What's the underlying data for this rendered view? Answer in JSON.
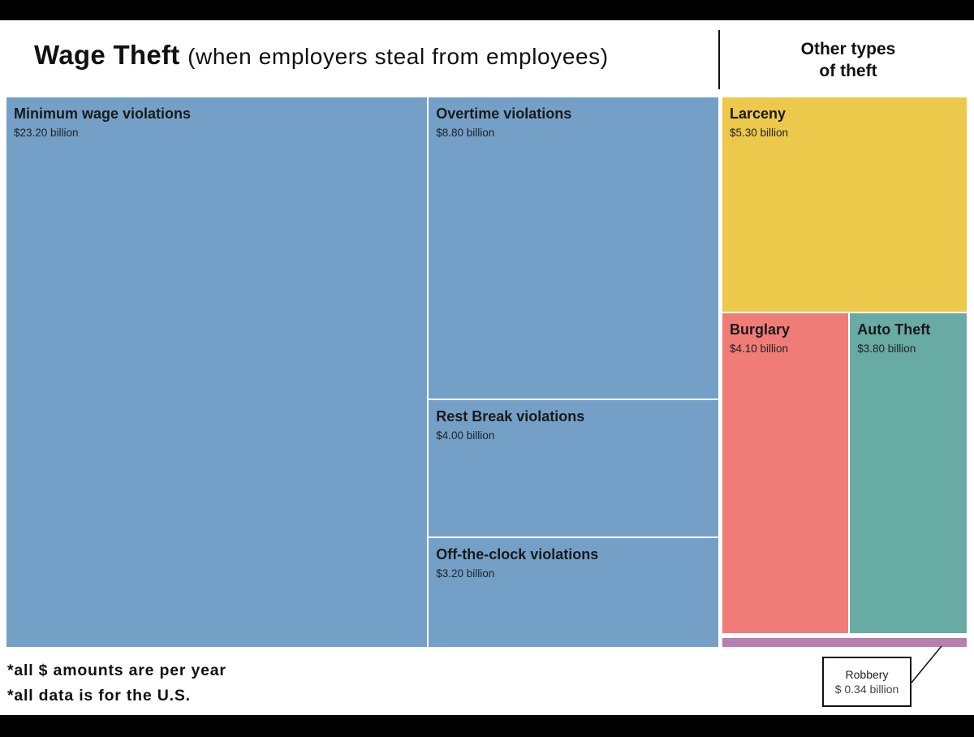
{
  "chart_data": {
    "type": "treemap",
    "title": "Wage Theft",
    "subtitle": "(when employers steal from employees)",
    "other_heading": [
      "Other types",
      "of theft"
    ],
    "colors": {
      "wage": "#74a0c7",
      "larceny": "#ecc94b",
      "burglary": "#f07c78",
      "auto_theft": "#68aaa4",
      "robbery": "#b67fb0"
    },
    "groups": [
      {
        "items": [
          {
            "label": "Minimum wage violations",
            "value": 23.2,
            "value_text": "$23.20 billion"
          },
          {
            "label": "Overtime violations",
            "value": 8.8,
            "value_text": "$8.80 billion"
          },
          {
            "label": "Rest Break violations",
            "value": 4.0,
            "value_text": "$4.00 billion"
          },
          {
            "label": "Off-the-clock violations",
            "value": 3.2,
            "value_text": "$3.20 billion"
          }
        ]
      },
      {
        "items": [
          {
            "label": "Larceny",
            "value": 5.3,
            "value_text": "$5.30 billion"
          },
          {
            "label": "Burglary",
            "value": 4.1,
            "value_text": "$4.10 billion"
          },
          {
            "label": "Auto Theft",
            "value": 3.8,
            "value_text": "$3.80 billion"
          },
          {
            "label": "Robbery",
            "value": 0.34,
            "value_text": "$ 0.34 billion"
          }
        ]
      }
    ],
    "notes": [
      "*all $ amounts are per year",
      "*all data is for the U.S."
    ]
  }
}
